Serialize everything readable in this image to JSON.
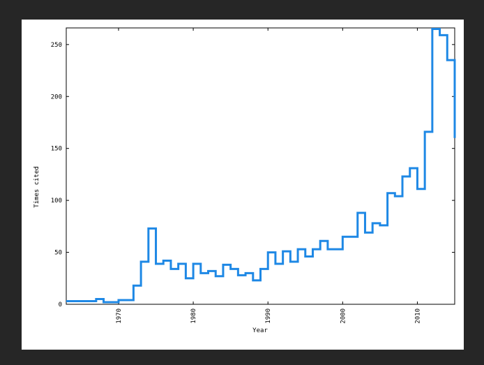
{
  "chart_data": {
    "type": "line",
    "style": "step",
    "title": "",
    "xlabel": "Year",
    "ylabel": "Times cited",
    "xlim": [
      1963,
      2015
    ],
    "ylim": [
      0,
      266
    ],
    "xticks": [
      1970,
      1980,
      1990,
      2000,
      2010
    ],
    "yticks": [
      0,
      50,
      100,
      150,
      200,
      250
    ],
    "grid": false,
    "legend": "none",
    "line_color": "#1e88e5",
    "series": [
      {
        "x": [
          1963,
          1964,
          1965,
          1966,
          1967,
          1968,
          1969,
          1970,
          1971,
          1972,
          1973,
          1974,
          1975,
          1976,
          1977,
          1978,
          1979,
          1980,
          1981,
          1982,
          1983,
          1984,
          1985,
          1986,
          1987,
          1988,
          1989,
          1990,
          1991,
          1992,
          1993,
          1994,
          1995,
          1996,
          1997,
          1998,
          1999,
          2000,
          2001,
          2002,
          2003,
          2004,
          2005,
          2006,
          2007,
          2008,
          2009,
          2010,
          2011,
          2012,
          2013,
          2014
        ],
        "values": [
          3,
          3,
          3,
          3,
          5,
          2,
          2,
          4,
          4,
          18,
          41,
          73,
          39,
          42,
          34,
          39,
          25,
          39,
          30,
          32,
          27,
          38,
          34,
          28,
          30,
          23,
          34,
          50,
          39,
          51,
          41,
          53,
          46,
          53,
          61,
          53,
          53,
          65,
          65,
          88,
          69,
          78,
          76,
          107,
          104,
          123,
          131,
          111,
          166,
          265,
          259,
          235
        ]
      }
    ],
    "last_segment_end": {
      "x": 2015,
      "y": 160
    }
  }
}
